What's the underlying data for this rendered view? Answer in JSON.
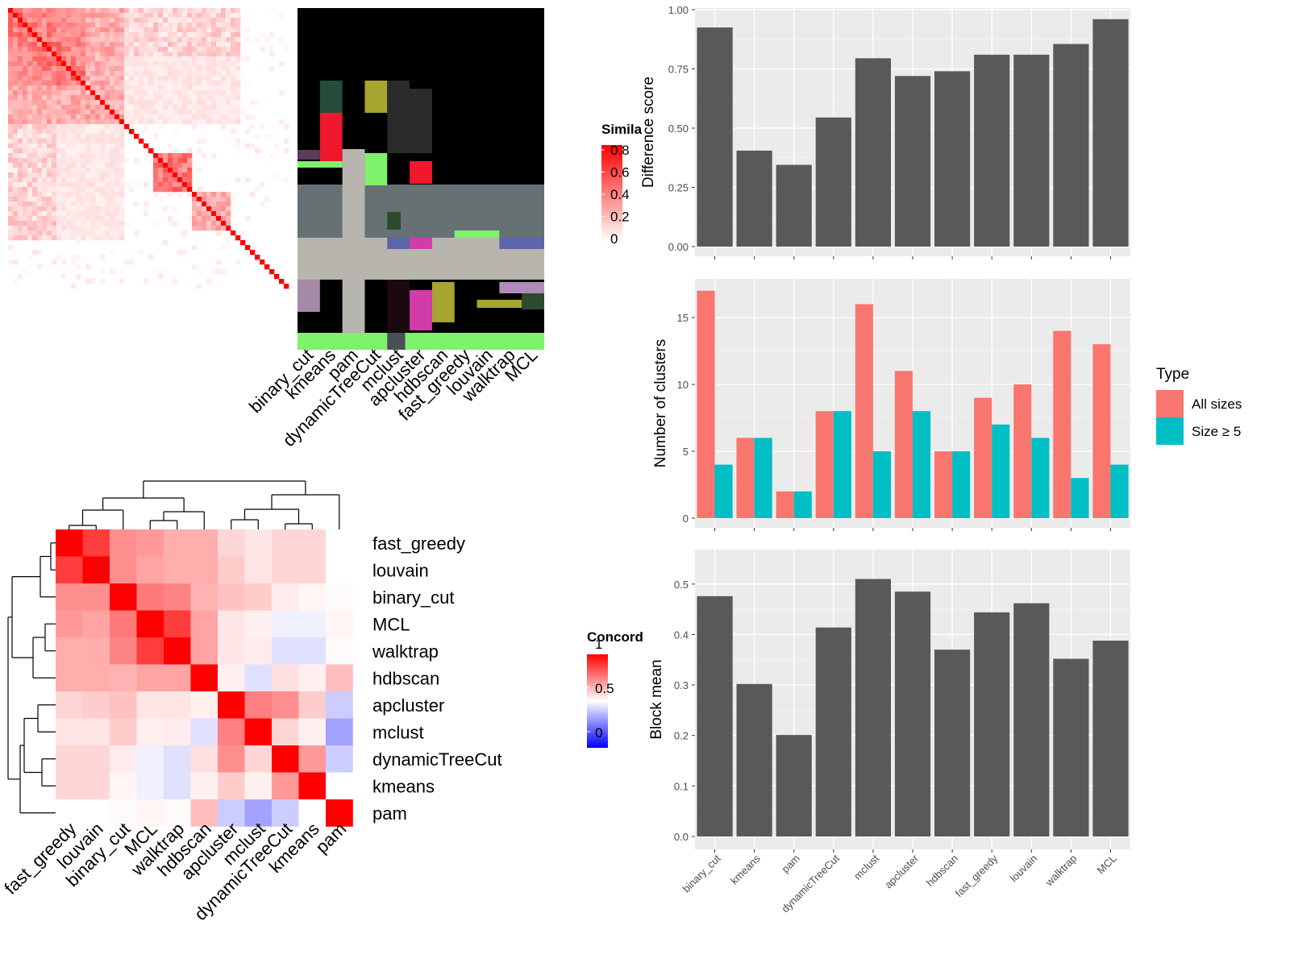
{
  "methods_bar": [
    "binary_cut",
    "kmeans",
    "pam",
    "dynamicTreeCut",
    "mclust",
    "apcluster",
    "hdbscan",
    "fast_greedy",
    "louvain",
    "walktrap",
    "MCL"
  ],
  "colors": {
    "bar": "#595959",
    "panel": "#ebebeb",
    "grid_major": "#ffffff",
    "all_sizes": "#f8766d",
    "size_ge5": "#00bfc4",
    "heat_high": "#ff0000",
    "heat_mid": "#ffffff",
    "heat_low": "#0000ff"
  },
  "similarity_heatmap": {
    "legend_title": "Simila",
    "legend_ticks": [
      "0.8",
      "0.6",
      "0.4",
      "0.2",
      "0"
    ]
  },
  "partition_heatmap": {
    "columns": [
      "binary_cut",
      "kmeans",
      "pam",
      "dynamicTreeCut",
      "mclust",
      "apcluster",
      "hdbscan",
      "fast_greedy",
      "louvain",
      "walktrap",
      "MCL"
    ]
  },
  "concordance_heatmap": {
    "legend_title": "Concord",
    "legend_ticks": [
      "1",
      "0.5",
      "0"
    ],
    "labels": [
      "fast_greedy",
      "louvain",
      "binary_cut",
      "MCL",
      "walktrap",
      "hdbscan",
      "apcluster",
      "mclust",
      "dynamicTreeCut",
      "kmeans",
      "pam"
    ],
    "matrix": [
      [
        1.0,
        0.88,
        0.72,
        0.7,
        0.66,
        0.66,
        0.58,
        0.55,
        0.58,
        0.58,
        0.5
      ],
      [
        0.88,
        1.0,
        0.72,
        0.68,
        0.66,
        0.66,
        0.6,
        0.55,
        0.58,
        0.58,
        0.5
      ],
      [
        0.72,
        0.72,
        1.0,
        0.76,
        0.74,
        0.65,
        0.62,
        0.6,
        0.54,
        0.52,
        0.51
      ],
      [
        0.7,
        0.68,
        0.76,
        1.0,
        0.88,
        0.68,
        0.55,
        0.53,
        0.47,
        0.47,
        0.52
      ],
      [
        0.66,
        0.66,
        0.74,
        0.88,
        1.0,
        0.68,
        0.55,
        0.54,
        0.44,
        0.44,
        0.51
      ],
      [
        0.66,
        0.66,
        0.65,
        0.68,
        0.68,
        1.0,
        0.53,
        0.44,
        0.56,
        0.53,
        0.63
      ],
      [
        0.58,
        0.6,
        0.62,
        0.55,
        0.55,
        0.53,
        1.0,
        0.75,
        0.72,
        0.6,
        0.4
      ],
      [
        0.55,
        0.55,
        0.6,
        0.53,
        0.54,
        0.44,
        0.75,
        1.0,
        0.58,
        0.53,
        0.32
      ],
      [
        0.58,
        0.58,
        0.54,
        0.47,
        0.44,
        0.56,
        0.72,
        0.58,
        1.0,
        0.7,
        0.4
      ],
      [
        0.58,
        0.58,
        0.52,
        0.47,
        0.44,
        0.53,
        0.6,
        0.53,
        0.7,
        1.0,
        0.5
      ],
      [
        0.5,
        0.5,
        0.51,
        0.52,
        0.51,
        0.63,
        0.4,
        0.32,
        0.4,
        0.5,
        1.0
      ]
    ]
  },
  "chart_data": [
    {
      "type": "bar",
      "categories": [
        "binary_cut",
        "kmeans",
        "pam",
        "dynamicTreeCut",
        "mclust",
        "apcluster",
        "hdbscan",
        "fast_greedy",
        "louvain",
        "walktrap",
        "MCL"
      ],
      "values": [
        0.925,
        0.405,
        0.345,
        0.545,
        0.795,
        0.72,
        0.74,
        0.81,
        0.81,
        0.855,
        0.96
      ],
      "ylabel": "Difference score",
      "ylim": [
        0,
        1.0
      ],
      "yticks": [
        "0.00",
        "0.25",
        "0.50",
        "0.75",
        "1.00"
      ],
      "grid": true
    },
    {
      "type": "bar",
      "categories": [
        "binary_cut",
        "kmeans",
        "pam",
        "dynamicTreeCut",
        "mclust",
        "apcluster",
        "hdbscan",
        "fast_greedy",
        "louvain",
        "walktrap",
        "MCL"
      ],
      "series": [
        {
          "name": "All sizes",
          "values": [
            17,
            6,
            2,
            8,
            16,
            11,
            5,
            9,
            10,
            14,
            13
          ]
        },
        {
          "name": "Size ≥ 5",
          "values": [
            4,
            6,
            2,
            8,
            5,
            8,
            5,
            7,
            6,
            3,
            4
          ]
        }
      ],
      "ylabel": "Number of clusters",
      "legend_title": "Type",
      "legend_position": "right",
      "ylim": [
        0,
        17.8
      ],
      "yticks": [
        "0",
        "5",
        "10",
        "15"
      ],
      "grid": true
    },
    {
      "type": "bar",
      "categories": [
        "binary_cut",
        "kmeans",
        "pam",
        "dynamicTreeCut",
        "mclust",
        "apcluster",
        "hdbscan",
        "fast_greedy",
        "louvain",
        "walktrap",
        "MCL"
      ],
      "values": [
        0.476,
        0.302,
        0.201,
        0.414,
        0.51,
        0.485,
        0.37,
        0.444,
        0.462,
        0.352,
        0.388
      ],
      "ylabel": "Block mean",
      "ylim": [
        0,
        0.53
      ],
      "yticks": [
        "0.0",
        "0.1",
        "0.2",
        "0.3",
        "0.4",
        "0.5"
      ],
      "grid": true
    }
  ]
}
